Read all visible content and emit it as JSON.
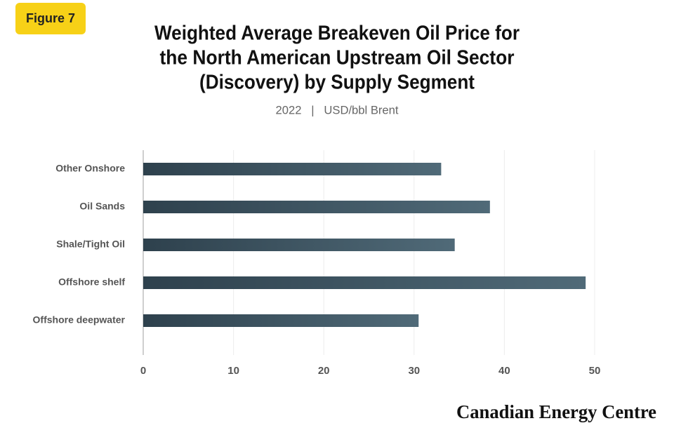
{
  "figure_label": "Figure 7",
  "logo_text": "Canadian Energy Centre",
  "chart_data": {
    "type": "bar",
    "orientation": "horizontal",
    "title": [
      "Weighted Average Breakeven Oil Price for",
      "the North American Upstream Oil Sector",
      "(Discovery) by Supply Segment"
    ],
    "subtitle": "2022   |   USD/bbl Brent",
    "categories": [
      "Other Onshore",
      "Oil Sands",
      "Shale/Tight Oil",
      "Offshore shelf",
      "Offshore deepwater"
    ],
    "values": [
      33.0,
      38.4,
      34.5,
      49.0,
      30.5
    ],
    "color_start": "#2e414d",
    "color_end": "#506a78",
    "xlim": [
      0,
      50
    ],
    "xticks": [
      0,
      10,
      20,
      30,
      40,
      50
    ],
    "grid": true
  }
}
